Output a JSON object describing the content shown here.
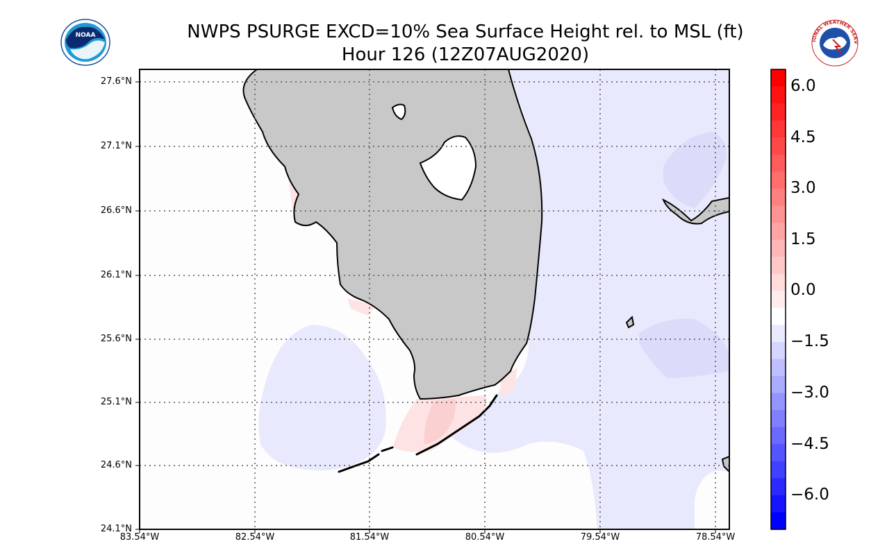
{
  "title": {
    "line1": "NWPS PSURGE EXCD=10% Sea Surface Height rel. to MSL (ft)",
    "line2": "Hour 126 (12Z07AUG2020)"
  },
  "logos": {
    "left": {
      "text": "NOAA",
      "icon": "noaa-logo"
    },
    "right": {
      "text": "NATIONAL WEATHER SERVICE",
      "icon": "nws-logo"
    }
  },
  "map": {
    "latitude_labels": [
      "27.6°N",
      "27.1°N",
      "26.6°N",
      "26.1°N",
      "25.6°N",
      "25.1°N",
      "24.6°N",
      "24.1°N"
    ],
    "longitude_labels": [
      "83.54°W",
      "82.54°W",
      "81.54°W",
      "80.54°W",
      "79.54°W",
      "78.54°W"
    ],
    "land_color": "#c8c8c8",
    "coastline_color": "#000000",
    "gridline_style": "dotted"
  },
  "colorbar": {
    "labels": [
      "6.0",
      "4.5",
      "3.0",
      "1.5",
      "0.0",
      "−1.5",
      "−3.0",
      "−4.5",
      "−6.0"
    ],
    "range": [
      -7,
      6.5
    ],
    "max_color": "#ff0000",
    "min_color": "#0000ff",
    "neutral_color": "#ffffff"
  }
}
